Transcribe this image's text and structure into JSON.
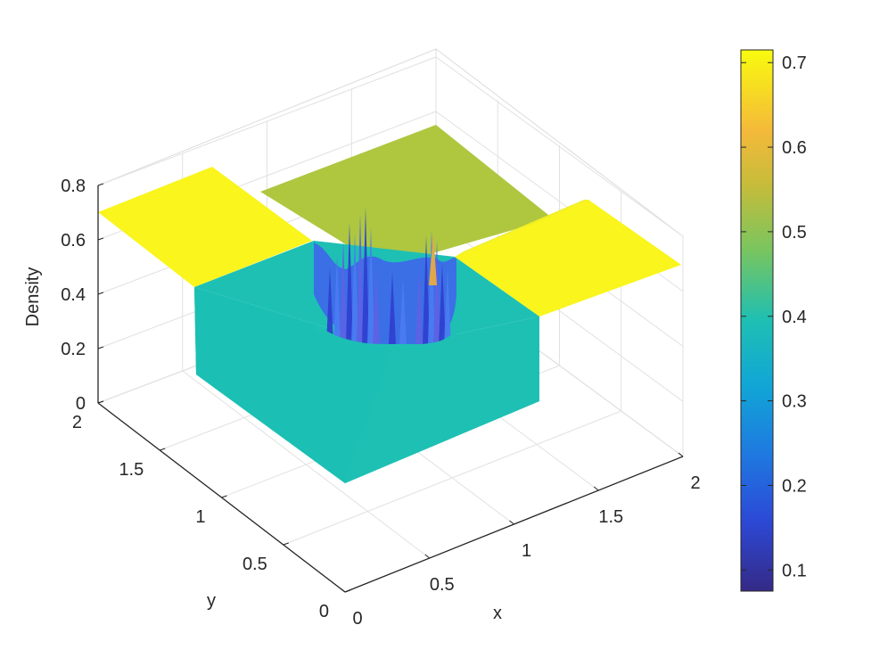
{
  "chart_data": {
    "type": "surface",
    "title": "",
    "xlabel": "x",
    "ylabel": "y",
    "zlabel": "Density",
    "xlim": [
      0,
      2
    ],
    "ylim": [
      0,
      2
    ],
    "zlim": [
      0,
      0.8
    ],
    "xticks": [
      "0",
      "0.5",
      "1",
      "1.5",
      "2"
    ],
    "yticks": [
      "0",
      "0.5",
      "1",
      "1.5",
      "2"
    ],
    "zticks": [
      "0",
      "0.2",
      "0.4",
      "0.6",
      "0.8"
    ],
    "grid": true,
    "regions": [
      {
        "name": "upper-left quadrant",
        "x": [
          0,
          1
        ],
        "y": [
          1,
          2
        ],
        "density": 0.7
      },
      {
        "name": "upper-right quadrant",
        "x": [
          1,
          2
        ],
        "y": [
          1,
          2
        ],
        "density": 0.53
      },
      {
        "name": "lower-right quadrant",
        "x": [
          1,
          2
        ],
        "y": [
          0,
          1
        ],
        "density": 0.7
      },
      {
        "name": "lower-left quadrant",
        "x": [
          0,
          1
        ],
        "y": [
          0,
          1
        ],
        "density": 0.4
      }
    ],
    "center_feature": {
      "x": 1,
      "y": 1,
      "min_density": 0.08,
      "max_density": 0.72
    },
    "colorbar": {
      "min": 0.075,
      "max": 0.715,
      "ticks": [
        "0.1",
        "0.2",
        "0.3",
        "0.4",
        "0.5",
        "0.6",
        "0.7"
      ],
      "colormap": "parula"
    },
    "colors": {
      "high": "#f9f51d",
      "mid_high": "#aec73f",
      "mid": "#1ec0b4",
      "low": "#3a4fe0",
      "axis": "#262626",
      "grid": "#e1e1e1"
    }
  }
}
